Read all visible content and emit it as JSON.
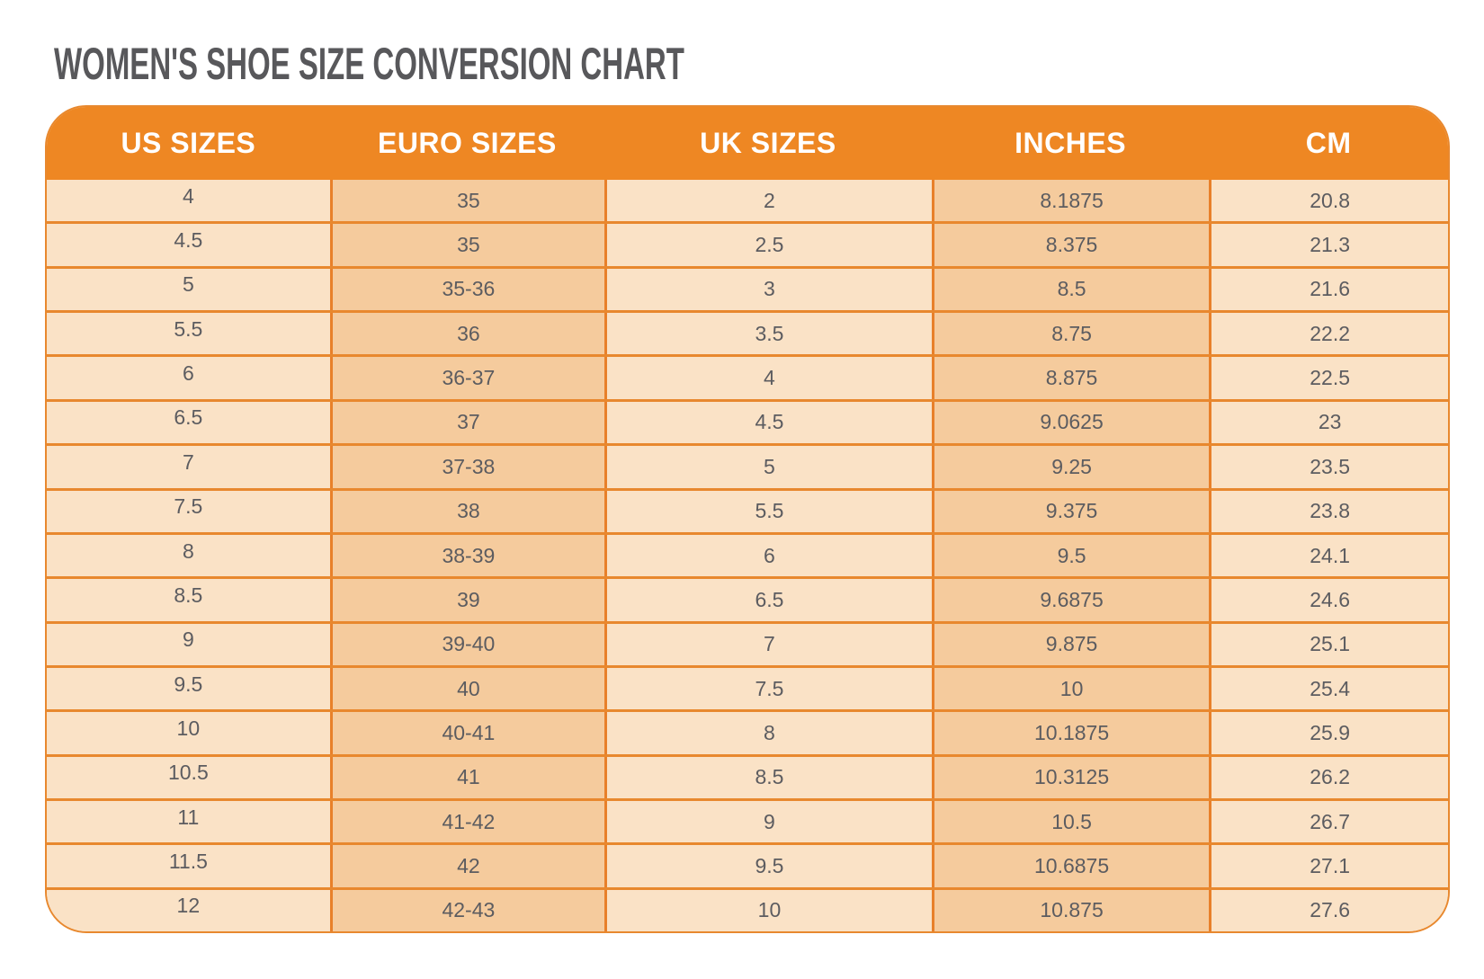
{
  "page": {
    "title": "WOMEN'S SHOE SIZE CONVERSION CHART"
  },
  "colors": {
    "header_bg": "#EE8723",
    "header_text": "#FFFFFF",
    "col_light": "#FAE2C6",
    "col_dark": "#F5CB9D",
    "border": "#E8882E",
    "border_v": "#E8802A",
    "title_text": "#58585B",
    "cell_text": "#5C5C60",
    "page_bg": "#FFFFFF"
  },
  "chart_data": {
    "type": "table",
    "title": "WOMEN'S SHOE SIZE CONVERSION CHART",
    "columns": [
      "US SIZES",
      "EURO SIZES",
      "UK SIZES",
      "INCHES",
      "CM"
    ],
    "rows": [
      [
        "4",
        "35",
        "2",
        "8.1875",
        "20.8"
      ],
      [
        "4.5",
        "35",
        "2.5",
        "8.375",
        "21.3"
      ],
      [
        "5",
        "35-36",
        "3",
        "8.5",
        "21.6"
      ],
      [
        "5.5",
        "36",
        "3.5",
        "8.75",
        "22.2"
      ],
      [
        "6",
        "36-37",
        "4",
        "8.875",
        "22.5"
      ],
      [
        "6.5",
        "37",
        "4.5",
        "9.0625",
        "23"
      ],
      [
        "7",
        "37-38",
        "5",
        "9.25",
        "23.5"
      ],
      [
        "7.5",
        "38",
        "5.5",
        "9.375",
        "23.8"
      ],
      [
        "8",
        "38-39",
        "6",
        "9.5",
        "24.1"
      ],
      [
        "8.5",
        "39",
        "6.5",
        "9.6875",
        "24.6"
      ],
      [
        "9",
        "39-40",
        "7",
        "9.875",
        "25.1"
      ],
      [
        "9.5",
        "40",
        "7.5",
        "10",
        "25.4"
      ],
      [
        "10",
        "40-41",
        "8",
        "10.1875",
        "25.9"
      ],
      [
        "10.5",
        "41",
        "8.5",
        "10.3125",
        "26.2"
      ],
      [
        "11",
        "41-42",
        "9",
        "10.5",
        "26.7"
      ],
      [
        "11.5",
        "42",
        "9.5",
        "10.6875",
        "27.1"
      ],
      [
        "12",
        "42-43",
        "10",
        "10.875",
        "27.6"
      ]
    ],
    "layout": {
      "grid": "on",
      "column_striping": "columns 2 and 4 shaded darker",
      "corner_style": "rounded table corners"
    }
  }
}
